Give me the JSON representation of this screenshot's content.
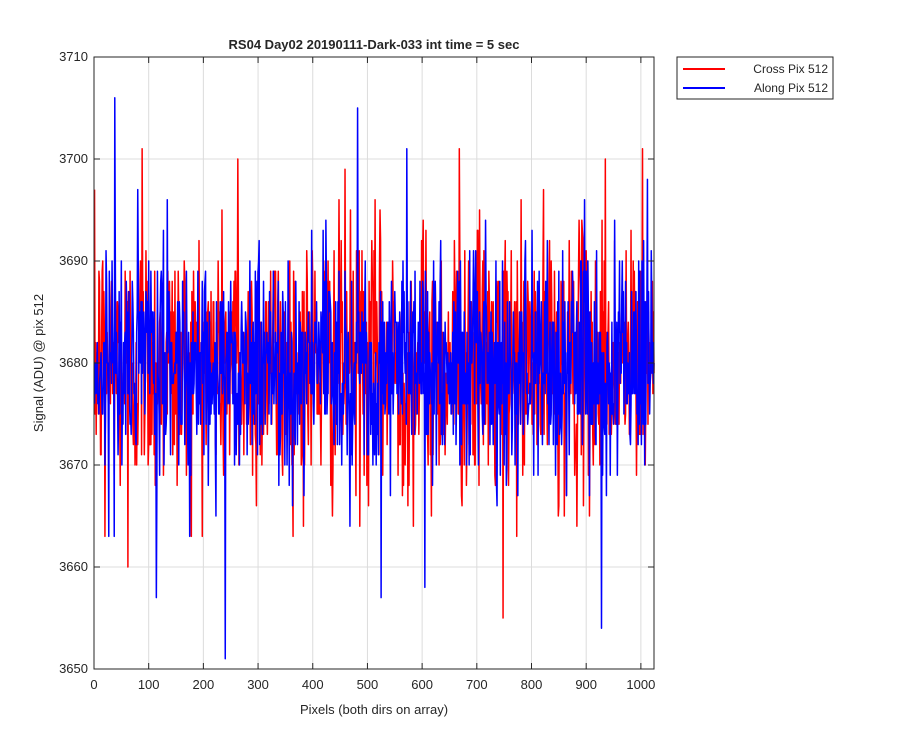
{
  "chart_data": {
    "type": "line",
    "title": "RS04 Day02 20190111-Dark-033 int time = 5 sec",
    "xlabel": "Pixels (both dirs on array)",
    "ylabel": "Signal (ADU) @ pix 512",
    "xlim": [
      0,
      1024
    ],
    "ylim": [
      3650,
      3710
    ],
    "xticks": [
      0,
      100,
      200,
      300,
      400,
      500,
      600,
      700,
      800,
      900,
      1000
    ],
    "yticks": [
      3650,
      3660,
      3670,
      3680,
      3690,
      3700,
      3710
    ],
    "grid": true,
    "legend_position": "outside-top-right",
    "series": [
      {
        "name": "Cross Pix 512",
        "color": "#ff0000",
        "mean": 3680,
        "noise_std": 6.5,
        "extremes": [
          {
            "x": 88,
            "y": 3701
          },
          {
            "x": 62,
            "y": 3660
          },
          {
            "x": 20,
            "y": 3663
          },
          {
            "x": 263,
            "y": 3700
          },
          {
            "x": 459,
            "y": 3699
          },
          {
            "x": 668,
            "y": 3701
          },
          {
            "x": 748,
            "y": 3655
          },
          {
            "x": 935,
            "y": 3700
          },
          {
            "x": 1003,
            "y": 3701
          }
        ]
      },
      {
        "name": "Along Pix 512",
        "color": "#0000ff",
        "mean": 3680,
        "noise_std": 5.5,
        "extremes": [
          {
            "x": 38,
            "y": 3706
          },
          {
            "x": 114,
            "y": 3657
          },
          {
            "x": 240,
            "y": 3651
          },
          {
            "x": 482,
            "y": 3705
          },
          {
            "x": 525,
            "y": 3657
          },
          {
            "x": 572,
            "y": 3701
          },
          {
            "x": 605,
            "y": 3658
          },
          {
            "x": 928,
            "y": 3654
          },
          {
            "x": 1012,
            "y": 3698
          }
        ]
      }
    ]
  }
}
